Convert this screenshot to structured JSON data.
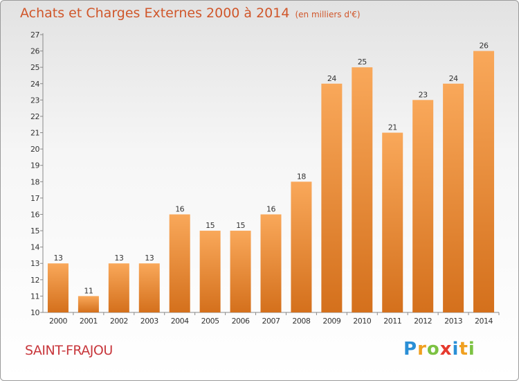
{
  "header": {
    "title": "Achats et Charges Externes 2000 à 2014",
    "subtitle": "(en milliers d'€)"
  },
  "commune": "SAINT-FRAJOU",
  "logo": {
    "text": "Proxiti",
    "letters": [
      "P",
      "r",
      "o",
      "x",
      "i",
      "t",
      "i"
    ]
  },
  "colors": {
    "title": "#d0562a",
    "bar_light": "#f9a85a",
    "bar_dark": "#d4701c",
    "commune": "#c8373c"
  },
  "chart_data": {
    "type": "bar",
    "title": "Achats et Charges Externes 2000 à 2014",
    "subtitle": "(en milliers d'€)",
    "xlabel": "",
    "ylabel": "",
    "categories": [
      "2000",
      "2001",
      "2002",
      "2003",
      "2004",
      "2005",
      "2006",
      "2007",
      "2008",
      "2009",
      "2010",
      "2011",
      "2012",
      "2013",
      "2014"
    ],
    "values": [
      13,
      11,
      13,
      13,
      16,
      15,
      15,
      16,
      18,
      24,
      25,
      21,
      23,
      24,
      26
    ],
    "ylim": [
      10,
      27
    ],
    "yticks": [
      10,
      11,
      12,
      13,
      14,
      15,
      16,
      17,
      18,
      19,
      20,
      21,
      22,
      23,
      24,
      25,
      26,
      27
    ],
    "grid": false,
    "data_labels": true
  }
}
